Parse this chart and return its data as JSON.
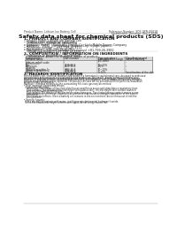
{
  "bg_color": "#ffffff",
  "header_left": "Product Name: Lithium Ion Battery Cell",
  "header_right_line1": "Reference Number: SDS-GEN-00018",
  "header_right_line2": "Established / Revision: Dec.7.2018",
  "title": "Safety data sheet for chemical products (SDS)",
  "section1_title": "1. PRODUCT AND COMPANY IDENTIFICATION",
  "section1_items": [
    "• Product name: Lithium Ion Battery Cell",
    "• Product code: Cylindrical-type cell",
    "    (UR18650J, UR18650A, UR18650A",
    "• Company name:    Panasonic Energy Co., Ltd.  Mobile Energy Company",
    "• Address:    2431  Kamisaibara, Sumoto-City, Hyogo, Japan",
    "• Telephone number:   +81-799-26-4111",
    "• Fax number:  +81-799-26-4120",
    "• Emergency telephone number (Weekdays) +81-799-26-3982",
    "    (Night and holiday) +81-799-26-4101"
  ],
  "section2_title": "2. COMPOSITION / INFORMATION ON INGREDIENTS",
  "section2_subtitle": "• Substance or preparation: Preparation",
  "section2_sub2": "  • Information about the chemical nature of product",
  "table_headers": [
    "Component /",
    "CAS number",
    "Concentration /",
    "Classification and"
  ],
  "table_headers2": [
    "General name",
    "",
    "Concentration range",
    "hazard labeling"
  ],
  "table_headers3": [
    "",
    "",
    "(EC-GHS)",
    ""
  ],
  "table_rows": [
    [
      "Lithium cobalt oxide",
      "-",
      "-",
      "-"
    ],
    [
      "(LiMn₂Co₂O₂)",
      "",
      "",
      ""
    ],
    [
      "Iron",
      "7439-89-6",
      "10~20%",
      "-"
    ],
    [
      "Aluminum",
      "7429-90-5",
      "2.6%",
      "-"
    ],
    [
      "Graphite",
      "",
      "",
      ""
    ],
    [
      "(Natural graphite-1",
      "7782-42-5",
      "10~20%",
      "-"
    ],
    [
      "(Artificial graphite-2)",
      "7782-42-5",
      "",
      ""
    ],
    [
      "Copper",
      "7440-50-8",
      "5~10%",
      "Sensitization of the skin"
    ]
  ],
  "section3_title": "3. HAZARDS IDENTIFICATION",
  "section3_body": [
    "For this battery cell, chemical materials are stored in a hermetically sealed metal case, designed to withstand",
    "temperatures and pressures encountered during normal use. As a result, during normal use, there is no",
    "physical change by oxidation or evaporation and there is a minimal risk of leakage, short-circuit leakage.",
    "However, if exposed to a fire, added mechanical shock, disintegrated, similar events without any miss-use,",
    "the gas release switch will be operated. The battery cell case will be penetrated of the particles, hazardous",
    "materials may be released.",
    "Moreover, if heated strongly by the surrounding fire, toxic gas may be emitted.",
    "",
    "• Most important hazard and effects:",
    "  Human health effects:",
    "    Inhalation: The release of the electrolyte has an anesthesia action and stimulates a respiratory tract.",
    "    Skin contact: The release of the electrolyte stimulates a skin. The electrolyte skin contact causes a",
    "    sore and stimulation on the skin.",
    "    Eye contact: The release of the electrolyte stimulates eyes. The electrolyte eye contact causes a sore",
    "    and stimulation on the eye. Especially, a substance that causes a strong inflammation of the eyes is",
    "    contained.",
    "    Environmental effects: Since a battery cell remains in the environment, do not throw out it into the",
    "    environment.",
    "",
    "• Specific hazards:",
    "  If the electrolyte contacts with water, it will generate detrimental hydrogen fluoride.",
    "  Since the heated electrolyte is flammable liquid, do not bring close to fire."
  ],
  "bottom_line": "___________________________________________________________________________________________________________"
}
